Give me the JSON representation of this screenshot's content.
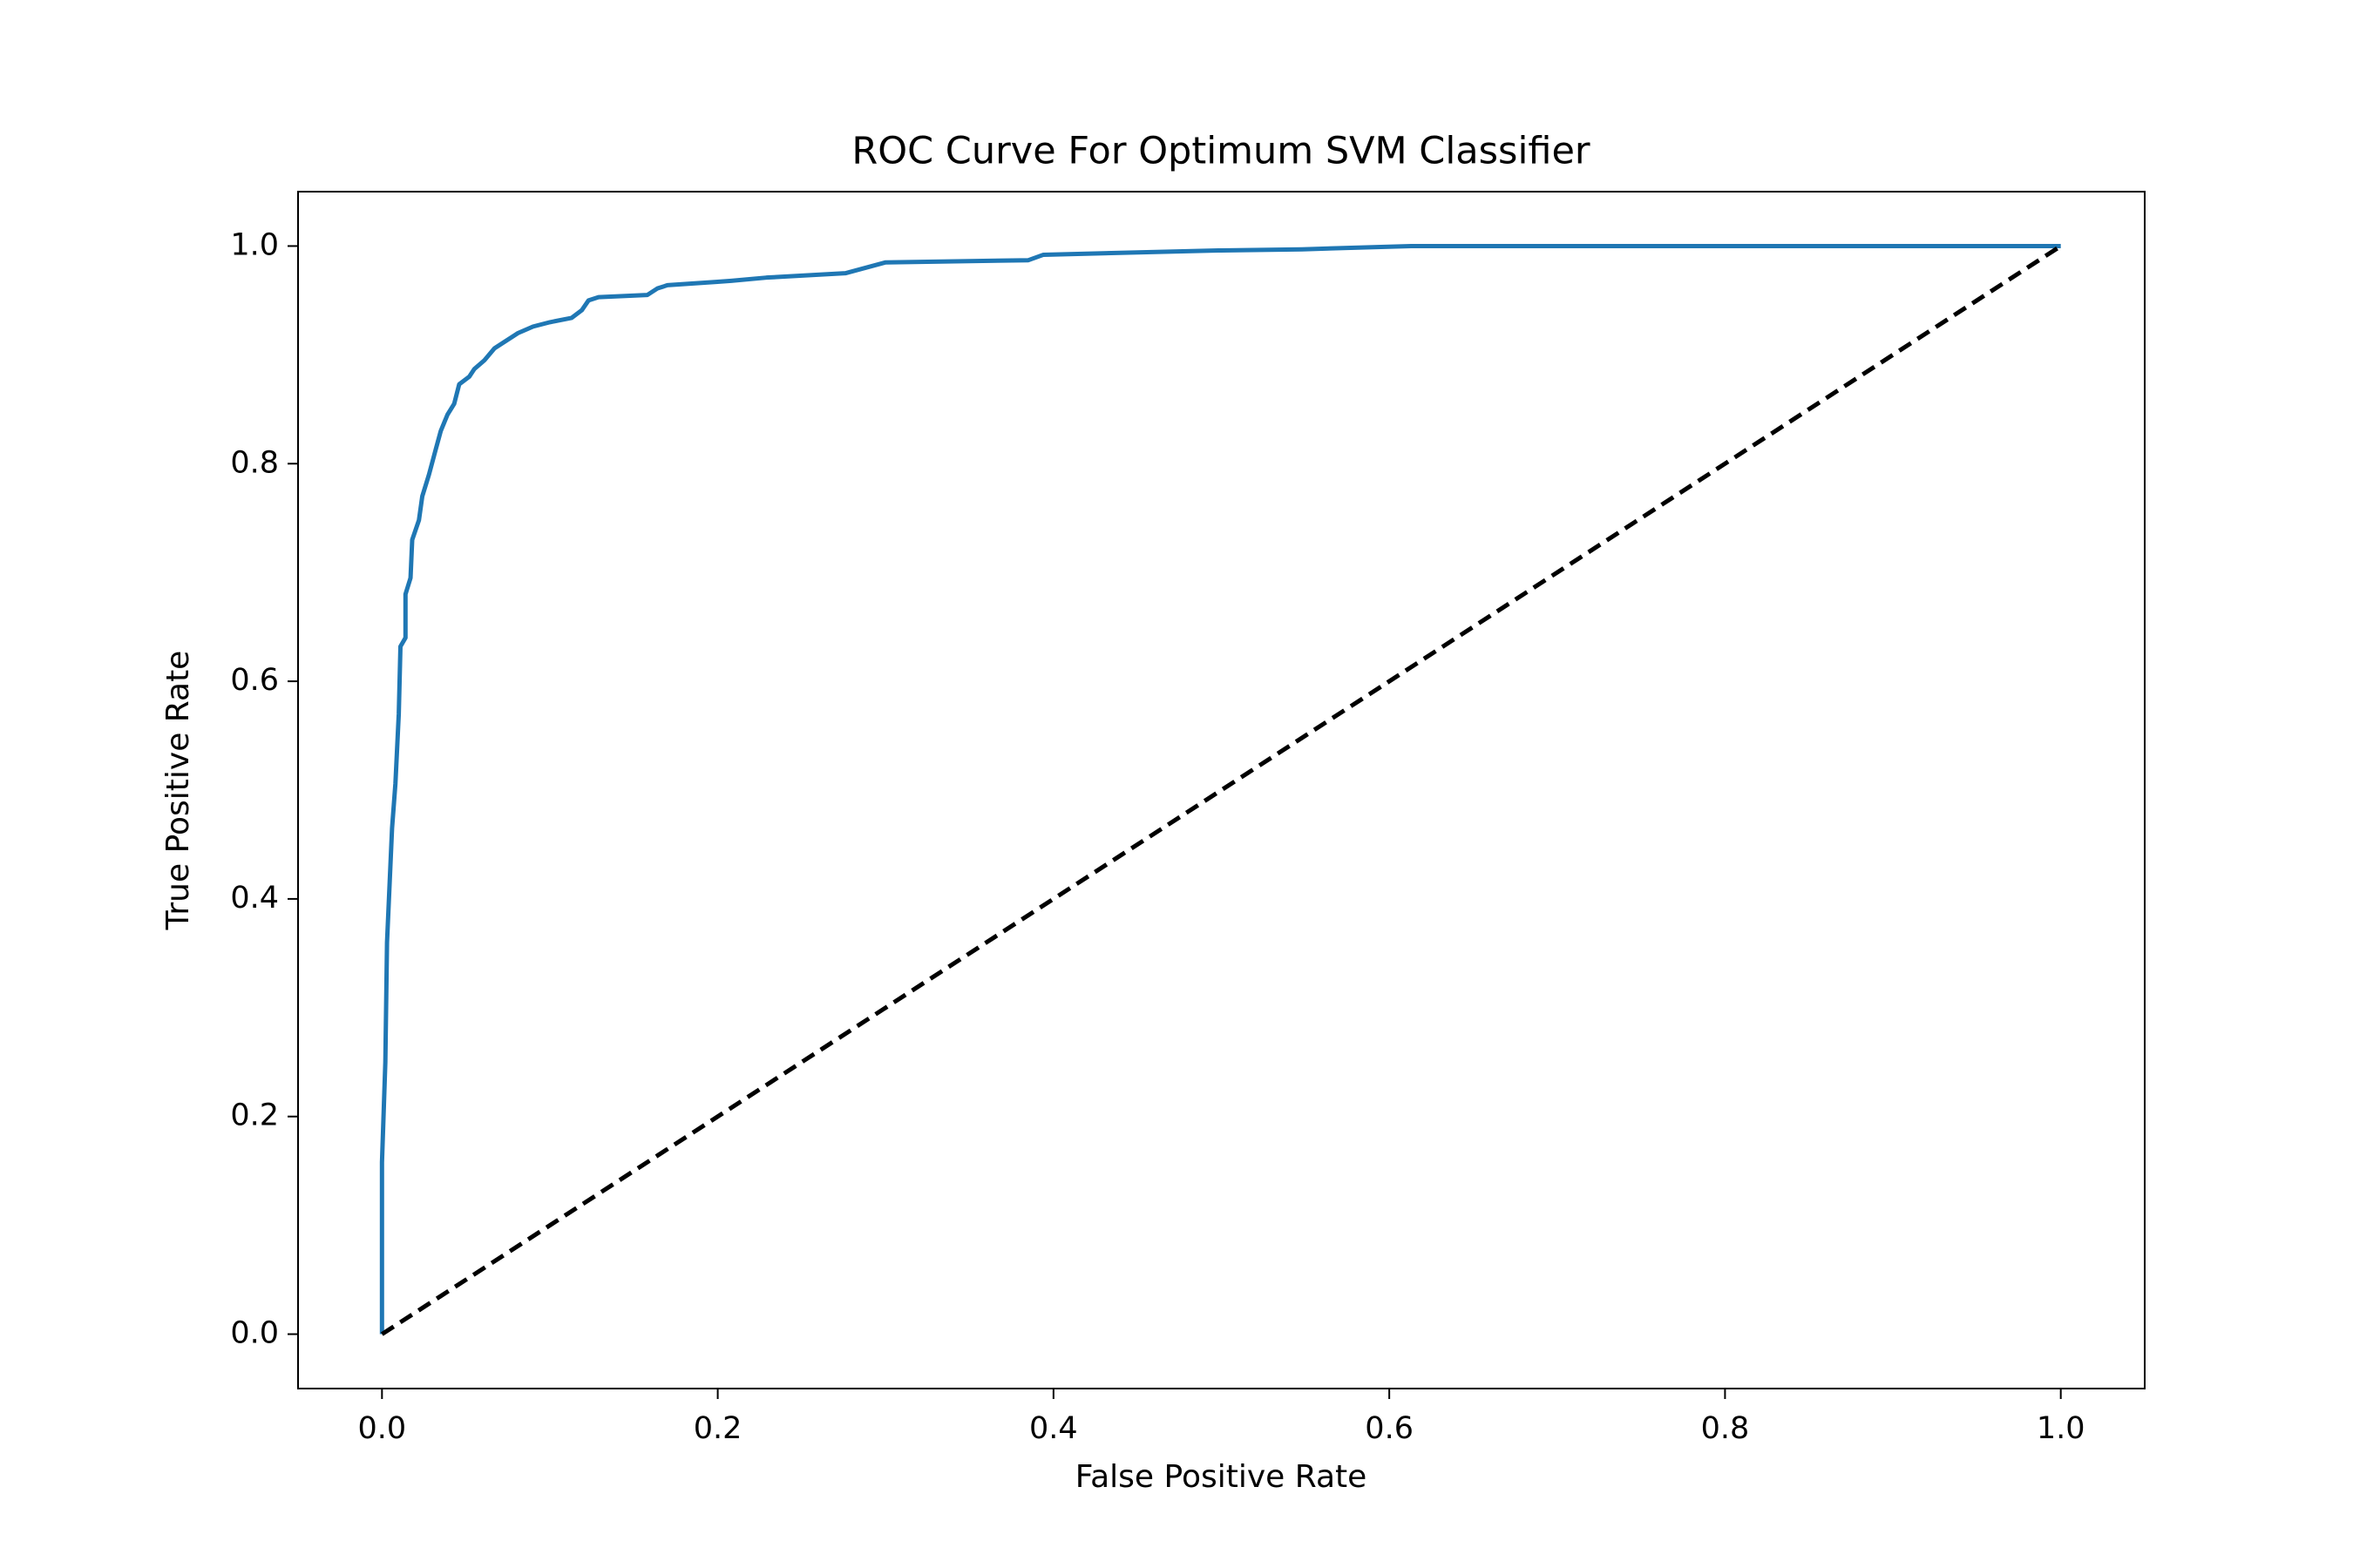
{
  "chart_data": {
    "type": "line",
    "title": "ROC Curve For Optimum SVM Classifier",
    "x_label": "False Positive Rate",
    "y_label": "True Positive Rate",
    "xlim": [
      -0.05,
      1.05
    ],
    "ylim": [
      -0.05,
      1.05
    ],
    "xticks": [
      {
        "value": 0,
        "label": "0.0"
      },
      0.2,
      0.4,
      0.6,
      0.8,
      {
        "value": 1,
        "label": "1.0"
      }
    ],
    "yticks": [
      {
        "value": 0,
        "label": "0.0"
      },
      0.2,
      0.4,
      0.6,
      0.8,
      {
        "value": 1,
        "label": "1.0"
      }
    ],
    "grid": false,
    "series": [
      {
        "color": "#1f77b4",
        "style": "solid",
        "x": [
          0,
          0,
          0.002,
          0.003,
          0.005,
          0.006,
          0.008,
          0.01,
          0.011,
          0.014,
          0.014,
          0.017,
          0.018,
          0.022,
          0.024,
          0.028,
          0.032,
          0.035,
          0.039,
          0.043,
          0.046,
          0.052,
          0.055,
          0.061,
          0.067,
          0.073,
          0.081,
          0.09,
          0.1,
          0.113,
          0.119,
          0.123,
          0.129,
          0.158,
          0.164,
          0.17,
          0.199,
          0.208,
          0.229,
          0.276,
          0.288,
          0.3,
          0.385,
          0.394,
          0.5,
          0.548,
          0.613,
          1
        ],
        "values": [
          0,
          0.158,
          0.25,
          0.36,
          0.43,
          0.465,
          0.506,
          0.57,
          0.632,
          0.64,
          0.68,
          0.695,
          0.73,
          0.748,
          0.77,
          0.79,
          0.813,
          0.83,
          0.845,
          0.855,
          0.873,
          0.88,
          0.887,
          0.895,
          0.906,
          0.912,
          0.92,
          0.926,
          0.93,
          0.934,
          0.941,
          0.95,
          0.953,
          0.955,
          0.961,
          0.964,
          0.967,
          0.968,
          0.971,
          0.975,
          0.98,
          0.985,
          0.987,
          0.992,
          0.996,
          0.997,
          1,
          1
        ]
      },
      {
        "color": "#000000",
        "style": "dashed",
        "x": [
          0,
          1
        ],
        "values": [
          0,
          1
        ]
      }
    ]
  }
}
